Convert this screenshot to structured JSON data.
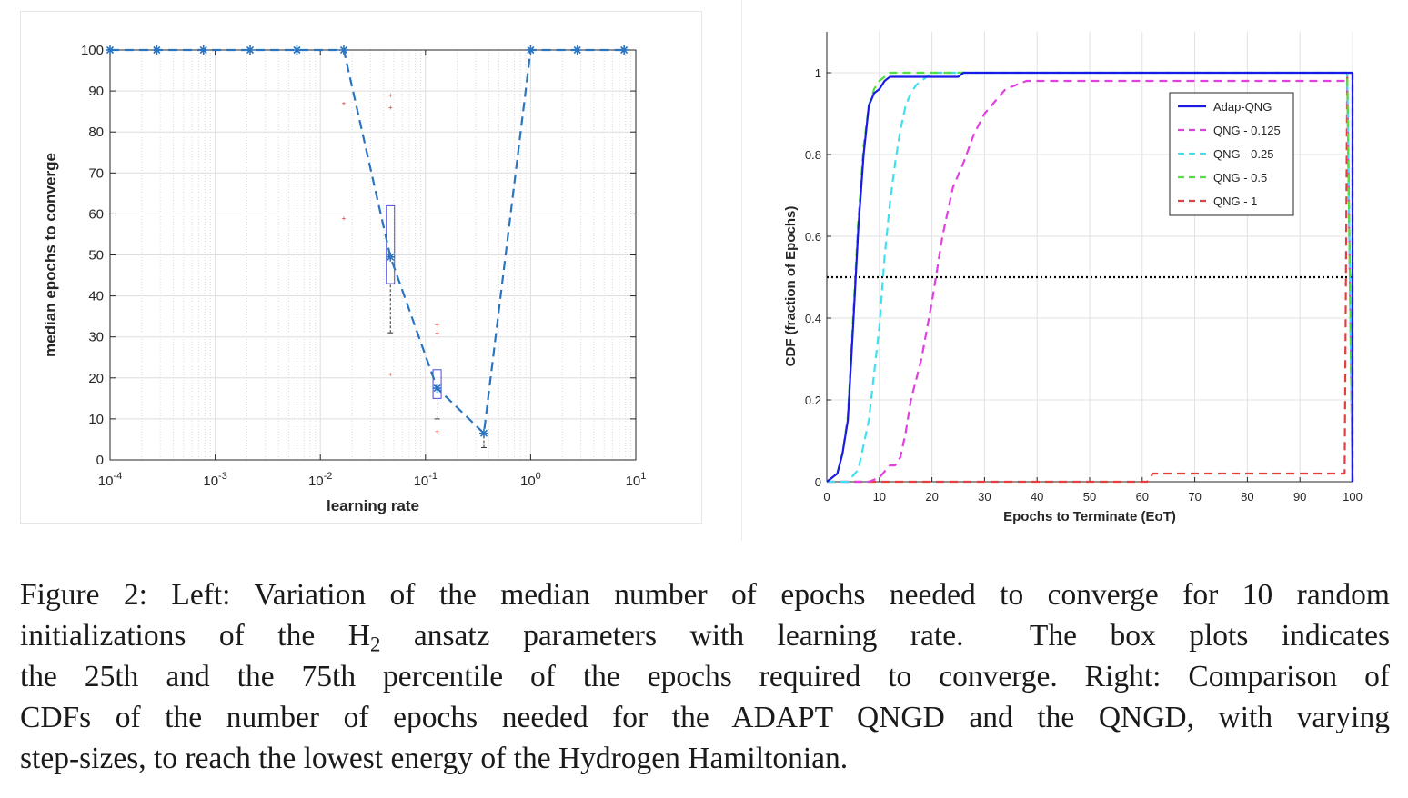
{
  "chart_data": [
    {
      "type": "line",
      "panel": "left",
      "xscale": "log",
      "xlabel": "learning rate",
      "ylabel": "median epochs to converge",
      "xlim": [
        0.0001,
        10
      ],
      "ylim": [
        0,
        100
      ],
      "xticks": [
        0.0001,
        0.001,
        0.01,
        0.1,
        1,
        10
      ],
      "xtick_labels": [
        {
          "base": "10",
          "exp": "-4"
        },
        {
          "base": "10",
          "exp": "-3"
        },
        {
          "base": "10",
          "exp": "-2"
        },
        {
          "base": "10",
          "exp": "-1"
        },
        {
          "base": "10",
          "exp": "0"
        },
        {
          "base": "10",
          "exp": "1"
        }
      ],
      "yticks": [
        0,
        10,
        20,
        30,
        40,
        50,
        60,
        70,
        80,
        90,
        100
      ],
      "ytick_labels": [
        "0",
        "10",
        "20",
        "30",
        "40",
        "50",
        "60",
        "70",
        "80",
        "90",
        "100"
      ],
      "grid": true,
      "color": "#2b74c0",
      "x": [
        0.0001,
        0.000278,
        0.000774,
        0.00215,
        0.00599,
        0.0167,
        0.0464,
        0.129,
        0.359,
        1.0,
        2.78,
        7.74
      ],
      "y": [
        100,
        100,
        100,
        100,
        100,
        100,
        49.5,
        17.5,
        6.5,
        100,
        100,
        100
      ],
      "boxes": [
        {
          "x": 0.0464,
          "q1": 43,
          "q3": 62,
          "median": 49.5,
          "whisker_low": 31,
          "whisker_high": 62,
          "outliers": [
            21,
            86,
            89
          ]
        },
        {
          "x": 0.129,
          "q1": 15,
          "q3": 22,
          "median": 17.5,
          "whisker_low": 10,
          "whisker_high": 22,
          "outliers": [
            7,
            31,
            33
          ]
        },
        {
          "x": 0.359,
          "q1": 6.5,
          "q3": 6.5,
          "median": 6.5,
          "whisker_low": 3,
          "whisker_high": 10,
          "outliers": []
        }
      ],
      "extra_outliers": [
        {
          "x": 0.0167,
          "y": 59
        },
        {
          "x": 0.0167,
          "y": 87
        }
      ],
      "line_dip_points": [
        {
          "x": 0.0167,
          "y": 100
        },
        {
          "x": 0.0464,
          "y": 49.5
        },
        {
          "x": 0.129,
          "y": 17.5
        },
        {
          "x": 0.359,
          "y": 6.5
        },
        {
          "x": 1.0,
          "y": 100
        }
      ]
    },
    {
      "type": "line",
      "panel": "right",
      "xlabel": "Epochs to Terminate (EoT)",
      "ylabel": "CDF (fraction of Epochs)",
      "xlim": [
        0,
        100
      ],
      "ylim": [
        0,
        1.1
      ],
      "xticks": [
        0,
        10,
        20,
        30,
        40,
        50,
        60,
        70,
        80,
        90,
        100
      ],
      "xtick_labels": [
        "0",
        "10",
        "20",
        "30",
        "40",
        "50",
        "60",
        "70",
        "80",
        "90",
        "100"
      ],
      "yticks": [
        0,
        0.2,
        0.4,
        0.6,
        0.8,
        1
      ],
      "ytick_labels": [
        "0",
        "0.2",
        "0.4",
        "0.6",
        "0.8",
        "1"
      ],
      "grid": true,
      "legend_position": "top-right",
      "reference_line": {
        "y": 0.5,
        "style": "dotted",
        "color": "#000000"
      },
      "series": [
        {
          "name": "Adap-QNG",
          "color": "#1a1ae6",
          "dash": "solid",
          "x": [
            0,
            2,
            3,
            4,
            5,
            6,
            7,
            8,
            9,
            10,
            11,
            12,
            20,
            25,
            26,
            30,
            99,
            100,
            100
          ],
          "y": [
            0,
            0.02,
            0.07,
            0.15,
            0.38,
            0.62,
            0.8,
            0.92,
            0.95,
            0.96,
            0.98,
            0.99,
            0.99,
            0.99,
            1.0,
            1.0,
            1.0,
            1.0,
            0
          ]
        },
        {
          "name": "QNG - 0.125",
          "color": "#e040e0",
          "dash": "dashed",
          "x": [
            0,
            8,
            10,
            12,
            13,
            14,
            15,
            16,
            18,
            20,
            22,
            24,
            26,
            28,
            30,
            32,
            34,
            36,
            38,
            40,
            42,
            99,
            100
          ],
          "y": [
            0,
            0,
            0.01,
            0.04,
            0.04,
            0.06,
            0.12,
            0.2,
            0.3,
            0.44,
            0.6,
            0.72,
            0.78,
            0.85,
            0.9,
            0.93,
            0.96,
            0.97,
            0.98,
            0.98,
            0.98,
            0.98,
            0
          ]
        },
        {
          "name": "QNG - 0.25",
          "color": "#40e0f0",
          "dash": "dashed",
          "x": [
            0,
            4,
            6,
            8,
            10,
            11,
            12,
            13,
            14,
            15,
            16,
            17,
            18,
            19,
            20,
            21,
            99,
            100
          ],
          "y": [
            0,
            0,
            0.03,
            0.15,
            0.38,
            0.55,
            0.68,
            0.78,
            0.86,
            0.92,
            0.95,
            0.97,
            0.98,
            0.99,
            1.0,
            1.0,
            1.0,
            0
          ]
        },
        {
          "name": "QNG - 0.5",
          "color": "#50e040",
          "dash": "dashed",
          "x": [
            0,
            2,
            3,
            4,
            5,
            6,
            7,
            8,
            9,
            10,
            11,
            12,
            13,
            99,
            100
          ],
          "y": [
            0,
            0.02,
            0.07,
            0.16,
            0.4,
            0.64,
            0.82,
            0.92,
            0.96,
            0.98,
            0.99,
            1.0,
            1.0,
            1.0,
            0
          ]
        },
        {
          "name": "QNG - 1",
          "color": "#e04040",
          "dash": "dashed",
          "x": [
            0,
            61,
            62,
            98.5,
            99,
            100
          ],
          "y": [
            0,
            0,
            0.02,
            0.02,
            1.0,
            0
          ]
        }
      ]
    }
  ],
  "caption": {
    "lines": [
      {
        "segments": [
          {
            "text": "Figure 2: Left: Variation of the median number of epochs needed to converge for 10 random"
          }
        ]
      },
      {
        "segments": [
          {
            "text": "initializations of the H"
          },
          {
            "sub": "2"
          },
          {
            "text": " ansatz parameters with learning rate.  The box plots indicates"
          }
        ]
      },
      {
        "segments": [
          {
            "text": "the 25th and the 75th percentile of the epochs required to converge. Right: Comparison of"
          }
        ]
      },
      {
        "segments": [
          {
            "text": "CDFs of the number of epochs needed for the ADAPT QNGD and the QNGD, with varying"
          }
        ]
      },
      {
        "segments": [
          {
            "text": "step-sizes, to reach the lowest energy of the Hydrogen Hamiltonian."
          }
        ]
      }
    ]
  }
}
